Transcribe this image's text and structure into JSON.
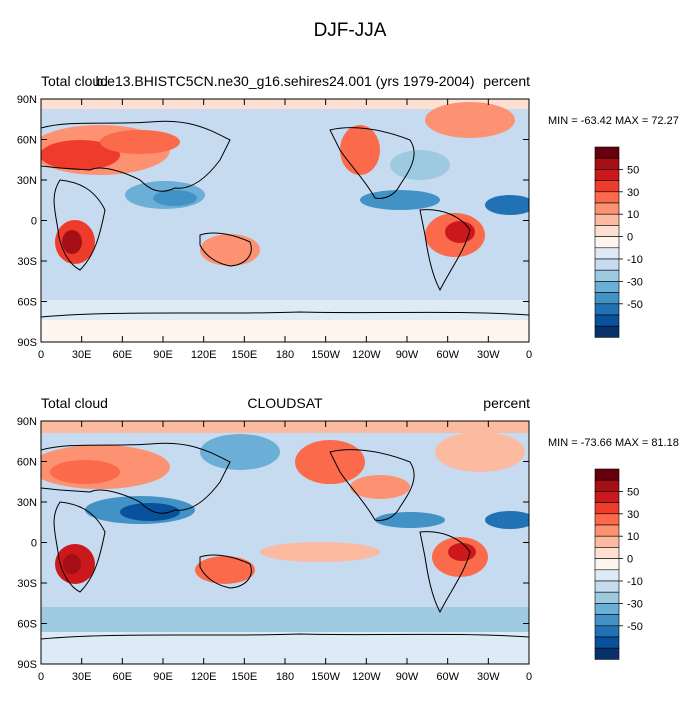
{
  "title": "DJF-JJA",
  "panels": [
    {
      "left_label": "Total cloud",
      "center_label": "b.e13.BHISTC5CN.ne30_g16.sehires24.001 (yrs 1979-2004)",
      "right_label": "percent",
      "min_max": "MIN = -63.42 MAX =  72.27"
    },
    {
      "left_label": "Total cloud",
      "center_label": "CLOUDSAT",
      "right_label": "percent",
      "min_max": "MIN = -73.66 MAX =  81.18"
    }
  ],
  "lat_ticks": [
    "90N",
    "60N",
    "30N",
    "0",
    "30S",
    "60S",
    "90S"
  ],
  "lon_ticks": [
    "0",
    "30E",
    "60E",
    "90E",
    "120E",
    "150E",
    "180",
    "150W",
    "120W",
    "90W",
    "60W",
    "30W",
    "0"
  ],
  "colorbar": {
    "labels": [
      "50",
      "30",
      "10",
      "0",
      "-10",
      "-30",
      "-50"
    ],
    "colors": [
      "#67000d",
      "#a50f15",
      "#cb181d",
      "#ef3b2c",
      "#fb6a4a",
      "#fc9272",
      "#fcbba1",
      "#fee0d2",
      "#fff5ee",
      "#deebf7",
      "#c6dbef",
      "#9ecae1",
      "#6baed6",
      "#4292c6",
      "#2171b5",
      "#08519c",
      "#08306b"
    ]
  }
}
